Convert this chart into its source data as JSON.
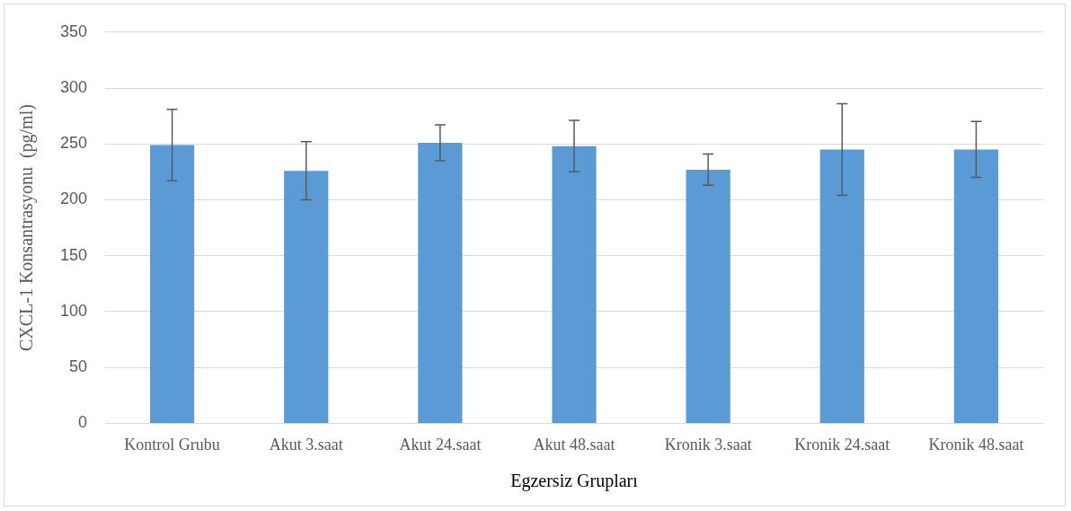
{
  "chart_data": {
    "type": "bar",
    "xlabel": "Egzersiz Grupları",
    "ylabel": "CXCL-1 Konsantrasyonu  (pg/ml)",
    "categories": [
      "Kontrol Grubu",
      "Akut 3.saat",
      "Akut 24.saat",
      "Akut 48.saat",
      "Kronik 3.saat",
      "Kronik 24.saat",
      "Kronik 48.saat"
    ],
    "values": [
      249,
      226,
      251,
      248,
      227,
      245,
      245
    ],
    "errors": [
      32,
      26,
      16,
      23,
      14,
      41,
      25
    ],
    "color": "#5b9bd5",
    "ylim": [
      0,
      350
    ],
    "yticks": [
      0,
      50,
      100,
      150,
      200,
      250,
      300,
      350
    ],
    "grid": "y",
    "legend": false
  }
}
